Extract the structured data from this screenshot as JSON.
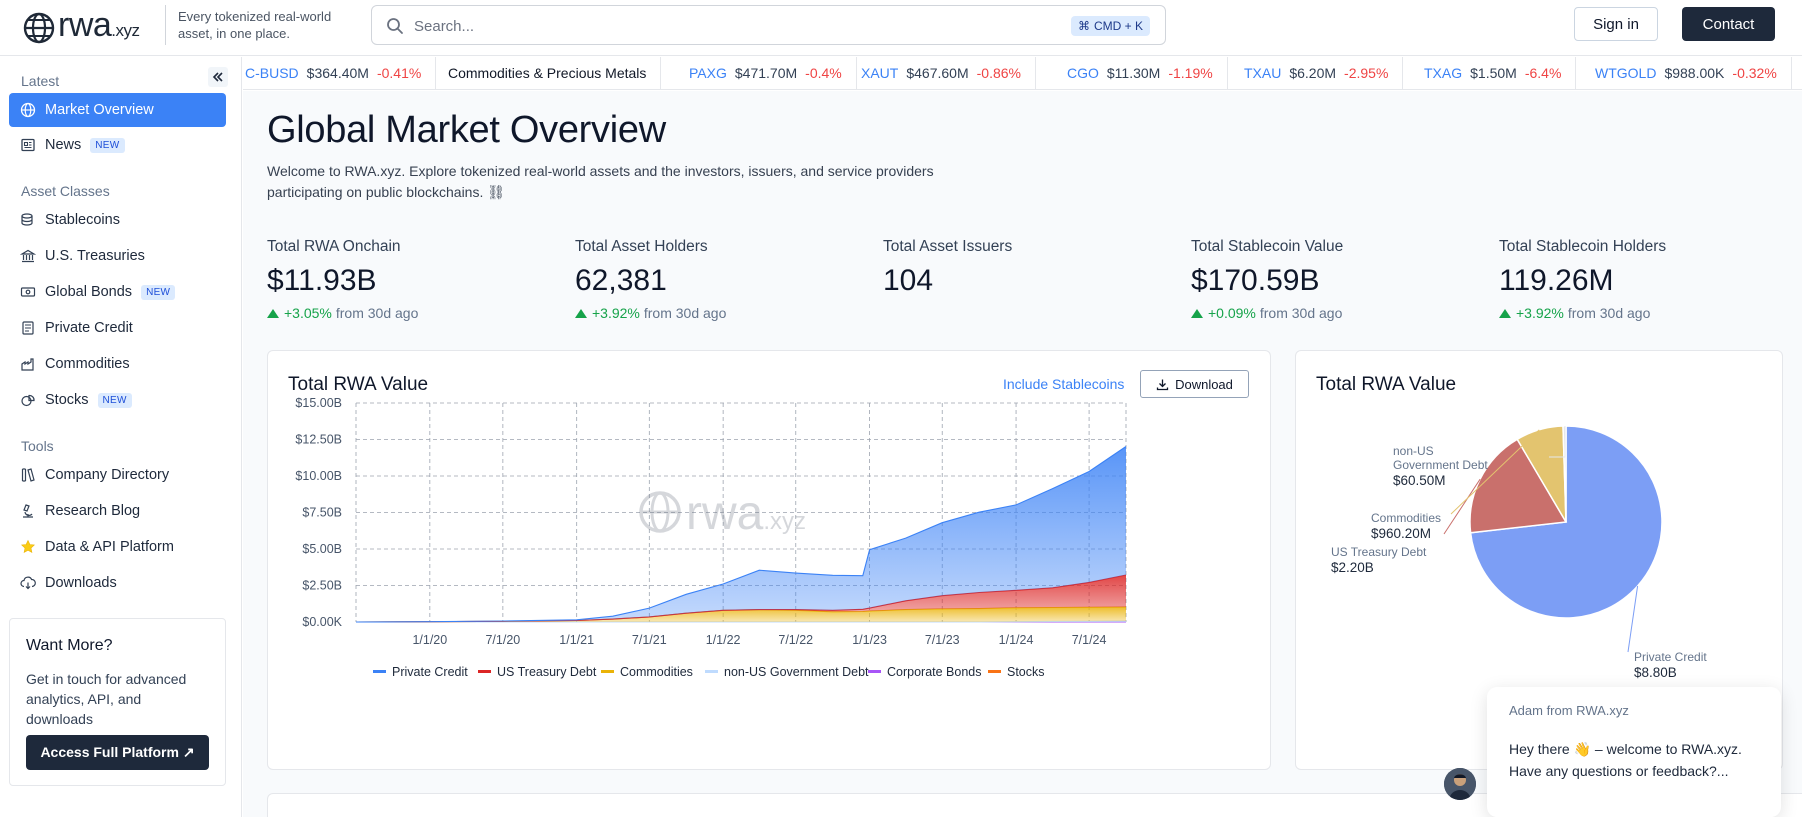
{
  "header": {
    "logo_text": "rwa",
    "logo_suffix": ".xyz",
    "tagline": "Every tokenized real-world asset, in one place.",
    "search_placeholder": "Search...",
    "search_shortcut": "CMD + K",
    "signin_label": "Sign in",
    "contact_label": "Contact"
  },
  "sidebar": {
    "sections": [
      {
        "label": "Latest"
      },
      {
        "label": "Asset Classes"
      },
      {
        "label": "Tools"
      }
    ],
    "items": [
      {
        "label": "Market Overview",
        "icon": "globe-icon"
      },
      {
        "label": "News",
        "badge": "NEW",
        "icon": "newspaper-icon"
      },
      {
        "label": "Stablecoins",
        "icon": "coins-icon"
      },
      {
        "label": "U.S. Treasuries",
        "icon": "bank-icon"
      },
      {
        "label": "Global Bonds",
        "badge": "NEW",
        "icon": "banknote-icon"
      },
      {
        "label": "Private Credit",
        "icon": "document-icon"
      },
      {
        "label": "Commodities",
        "icon": "factory-icon"
      },
      {
        "label": "Stocks",
        "badge": "NEW",
        "icon": "stocks-icon"
      },
      {
        "label": "Company Directory",
        "icon": "books-icon"
      },
      {
        "label": "Research Blog",
        "icon": "microscope-icon"
      },
      {
        "label": "Data & API Platform",
        "icon": "star-icon"
      },
      {
        "label": "Downloads",
        "icon": "cloud-download-icon"
      }
    ],
    "promo": {
      "title": "Want More?",
      "text": "Get in touch for advanced analytics, API, and downloads",
      "button": "Access Full Platform ↗"
    }
  },
  "ticker": {
    "items": [
      {
        "symbol": "C-BUSD",
        "value": "$364.40M",
        "change": "-0.41%"
      },
      {
        "category": "Commodities & Precious Metals"
      },
      {
        "symbol": "PAXG",
        "value": "$471.70M",
        "change": "-0.4%"
      },
      {
        "symbol": "XAUT",
        "value": "$467.60M",
        "change": "-0.86%"
      },
      {
        "symbol": "CGO",
        "value": "$11.30M",
        "change": "-1.19%"
      },
      {
        "symbol": "TXAU",
        "value": "$6.20M",
        "change": "-2.95%"
      },
      {
        "symbol": "TXAG",
        "value": "$1.50M",
        "change": "-6.4%"
      },
      {
        "symbol": "WTGOLD",
        "value": "$988.00K",
        "change": "-0.32%"
      }
    ]
  },
  "main": {
    "title": "Global Market Overview",
    "description": "Welcome to RWA.xyz. Explore tokenized real-world assets and the investors, issuers, and service providers participating on public blockchains. ⛓",
    "stats": [
      {
        "label": "Total RWA Onchain",
        "value": "$11.93B",
        "change": "+3.05%",
        "suffix": "from 30d ago"
      },
      {
        "label": "Total Asset Holders",
        "value": "62,381",
        "change": "+3.92%",
        "suffix": "from 30d ago"
      },
      {
        "label": "Total Asset Issuers",
        "value": "104"
      },
      {
        "label": "Total Stablecoin Value",
        "value": "$170.59B",
        "change": "+0.09%",
        "suffix": "from 30d ago"
      },
      {
        "label": "Total Stablecoin Holders",
        "value": "119.26M",
        "change": "+3.92%",
        "suffix": "from 30d ago"
      }
    ],
    "area_card": {
      "title": "Total RWA Value",
      "include_link": "Include Stablecoins",
      "download_label": "Download",
      "watermark": "rwa",
      "watermark_suffix": ".xyz"
    },
    "pie_card": {
      "title": "Total RWA Value"
    }
  },
  "chat": {
    "from": "Adam from RWA.xyz",
    "message": "Hey there 👋 – welcome to RWA.xyz. Have any questions or feedback?..."
  },
  "chart_data": [
    {
      "type": "area",
      "title": "Total RWA Value",
      "x_ticks": [
        "1/1/20",
        "7/1/20",
        "1/1/21",
        "7/1/21",
        "1/1/22",
        "7/1/22",
        "1/1/23",
        "7/1/23",
        "1/1/24",
        "7/1/24"
      ],
      "y_ticks": [
        "$0.00K",
        "$2.50B",
        "$5.00B",
        "$7.50B",
        "$10.00B",
        "$12.50B",
        "$15.00B"
      ],
      "ylim": [
        0,
        15
      ],
      "y_unit": "B",
      "stacked": true,
      "x": [
        "2019-07-01",
        "2020-01-01",
        "2020-07-01",
        "2021-01-01",
        "2021-04-01",
        "2021-07-01",
        "2021-10-01",
        "2022-01-01",
        "2022-04-01",
        "2022-07-01",
        "2022-10-01",
        "2022-12-15",
        "2023-01-01",
        "2023-04-01",
        "2023-07-01",
        "2023-10-01",
        "2024-01-01",
        "2024-04-01",
        "2024-07-01",
        "2024-10-01"
      ],
      "series": [
        {
          "name": "Stocks",
          "color": "#f97316",
          "values": [
            0,
            0,
            0,
            0,
            0,
            0,
            0,
            0,
            0,
            0,
            0,
            0,
            0,
            0,
            0,
            0,
            0,
            0,
            0,
            0
          ]
        },
        {
          "name": "Corporate Bonds",
          "color": "#a855f7",
          "values": [
            0,
            0,
            0,
            0,
            0,
            0,
            0,
            0,
            0,
            0,
            0,
            0,
            0,
            0,
            0,
            0,
            0,
            0,
            0,
            0
          ]
        },
        {
          "name": "non-US Government Debt",
          "color": "#bfdbfe",
          "values": [
            0,
            0,
            0,
            0,
            0,
            0,
            0,
            0,
            0,
            0,
            0,
            0,
            0,
            0,
            0,
            0,
            0.02,
            0.04,
            0.05,
            0.06
          ]
        },
        {
          "name": "Commodities",
          "color": "#eab308",
          "values": [
            0,
            0.02,
            0.05,
            0.1,
            0.2,
            0.35,
            0.6,
            0.8,
            0.85,
            0.8,
            0.7,
            0.72,
            0.75,
            0.85,
            0.9,
            0.92,
            0.95,
            0.95,
            0.96,
            0.96
          ]
        },
        {
          "name": "US Treasury Debt",
          "color": "#dc2626",
          "values": [
            0,
            0,
            0,
            0,
            0,
            0,
            0,
            0,
            0,
            0.05,
            0.1,
            0.15,
            0.2,
            0.6,
            0.9,
            1.1,
            1.2,
            1.35,
            1.7,
            2.2
          ]
        },
        {
          "name": "Private Credit",
          "color": "#3b82f6",
          "values": [
            0,
            0,
            0.02,
            0.05,
            0.2,
            0.6,
            1.3,
            1.8,
            2.7,
            2.5,
            2.4,
            2.3,
            4.0,
            4.3,
            5.0,
            5.5,
            5.85,
            6.8,
            7.6,
            8.8
          ]
        }
      ],
      "legend": [
        "Private Credit",
        "US Treasury Debt",
        "Commodities",
        "non-US Government Debt",
        "Corporate Bonds",
        "Stocks"
      ],
      "legend_position": "bottom",
      "grid": true
    },
    {
      "type": "pie",
      "title": "Total RWA Value",
      "slices": [
        {
          "label": "Private Credit",
          "value": 8.8,
          "display": "$8.80B",
          "color": "#7c9ef5"
        },
        {
          "label": "US Treasury Debt",
          "value": 2.2,
          "display": "$2.20B",
          "color": "#c9706c"
        },
        {
          "label": "Commodities",
          "value": 0.9602,
          "display": "$960.20M",
          "color": "#e3c46f"
        },
        {
          "label": "non-US Government Debt",
          "value": 0.0605,
          "display": "$60.50M",
          "color": "#e5e7eb"
        }
      ]
    }
  ]
}
